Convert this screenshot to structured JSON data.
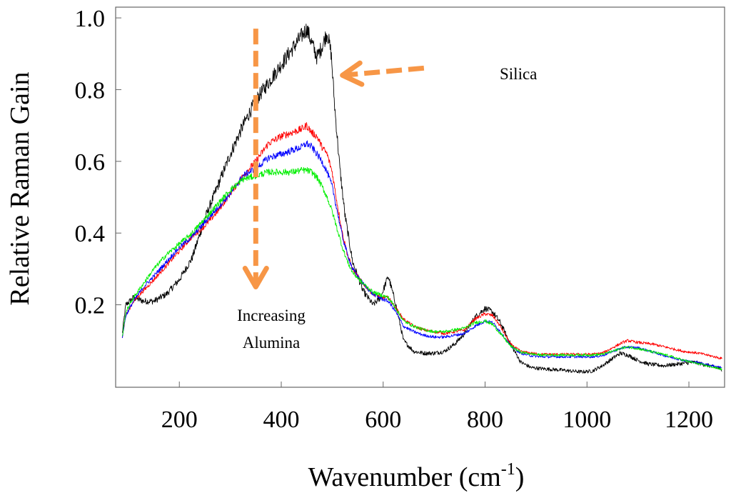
{
  "chart_data": {
    "type": "line",
    "xlabel": "Wavenumber (cm",
    "xlabel_sup": "-1",
    "xlabel_end": ")",
    "ylabel": "Relative Raman Gain",
    "xlim": [
      75,
      1270
    ],
    "ylim": [
      -0.03,
      1.03
    ],
    "xticks": [
      200,
      400,
      600,
      800,
      1000,
      1200
    ],
    "yticks": [
      0.2,
      0.4,
      0.6,
      0.8,
      1.0
    ],
    "ytick_labels": [
      "0.2",
      "0.4",
      "0.6",
      "0.8",
      "1.0"
    ],
    "grid": false,
    "annotations": [
      {
        "text": "Silica",
        "x": 690,
        "y": 0.83
      },
      {
        "text": "Increasing",
        "x": 385,
        "y": 0.17
      },
      {
        "text": "Alumina",
        "x": 385,
        "y": 0.1
      }
    ],
    "arrows": [
      {
        "label": "Increasing Alumina",
        "from": [
          350,
          0.97
        ],
        "to": [
          350,
          0.25
        ],
        "color": "#f79646"
      },
      {
        "label": "Silica",
        "from": [
          680,
          0.86
        ],
        "to": [
          520,
          0.84
        ],
        "color": "#f79646"
      }
    ],
    "series": [
      {
        "name": "Silica",
        "color": "#000000",
        "noise": 0.012,
        "x": [
          88,
          95,
          110,
          130,
          150,
          175,
          200,
          225,
          250,
          275,
          300,
          325,
          350,
          375,
          400,
          420,
          440,
          450,
          460,
          470,
          480,
          490,
          498,
          505,
          515,
          525,
          540,
          560,
          580,
          595,
          610,
          625,
          640,
          660,
          680,
          700,
          720,
          740,
          760,
          780,
          800,
          815,
          830,
          850,
          870,
          890,
          910,
          930,
          950,
          970,
          990,
          1010,
          1030,
          1050,
          1065,
          1080,
          1100,
          1120,
          1150,
          1180,
          1210,
          1240,
          1265
        ],
        "y": [
          0.12,
          0.2,
          0.22,
          0.21,
          0.21,
          0.23,
          0.27,
          0.33,
          0.44,
          0.53,
          0.62,
          0.7,
          0.77,
          0.82,
          0.87,
          0.91,
          0.95,
          0.97,
          0.93,
          0.89,
          0.92,
          0.96,
          0.9,
          0.75,
          0.58,
          0.45,
          0.32,
          0.24,
          0.2,
          0.22,
          0.28,
          0.2,
          0.1,
          0.07,
          0.065,
          0.065,
          0.07,
          0.09,
          0.12,
          0.165,
          0.19,
          0.18,
          0.15,
          0.09,
          0.04,
          0.025,
          0.022,
          0.02,
          0.018,
          0.015,
          0.013,
          0.015,
          0.03,
          0.05,
          0.065,
          0.06,
          0.045,
          0.035,
          0.03,
          0.035,
          0.04,
          0.03,
          0.02
        ]
      },
      {
        "name": "Red",
        "color": "#ff0000",
        "noise": 0.007,
        "x": [
          88,
          95,
          110,
          130,
          150,
          175,
          200,
          225,
          250,
          275,
          300,
          325,
          350,
          375,
          400,
          420,
          440,
          450,
          460,
          470,
          480,
          490,
          500,
          510,
          520,
          530,
          540,
          560,
          580,
          600,
          610,
          625,
          640,
          660,
          680,
          700,
          720,
          740,
          760,
          780,
          800,
          815,
          830,
          850,
          870,
          890,
          910,
          930,
          950,
          980,
          1010,
          1030,
          1050,
          1070,
          1080,
          1100,
          1130,
          1160,
          1190,
          1220,
          1265
        ],
        "y": [
          0.11,
          0.17,
          0.21,
          0.24,
          0.27,
          0.31,
          0.35,
          0.39,
          0.42,
          0.46,
          0.51,
          0.56,
          0.6,
          0.65,
          0.67,
          0.68,
          0.69,
          0.7,
          0.68,
          0.67,
          0.64,
          0.62,
          0.57,
          0.48,
          0.4,
          0.34,
          0.3,
          0.26,
          0.23,
          0.22,
          0.22,
          0.19,
          0.16,
          0.14,
          0.13,
          0.125,
          0.12,
          0.125,
          0.13,
          0.16,
          0.175,
          0.17,
          0.14,
          0.09,
          0.07,
          0.065,
          0.062,
          0.062,
          0.062,
          0.062,
          0.062,
          0.065,
          0.08,
          0.095,
          0.1,
          0.095,
          0.09,
          0.08,
          0.07,
          0.065,
          0.05
        ]
      },
      {
        "name": "Blue",
        "color": "#0000ff",
        "noise": 0.007,
        "x": [
          88,
          95,
          110,
          130,
          150,
          175,
          200,
          225,
          250,
          275,
          300,
          325,
          350,
          375,
          400,
          420,
          440,
          450,
          460,
          470,
          480,
          490,
          500,
          510,
          520,
          530,
          540,
          560,
          580,
          600,
          610,
          625,
          640,
          660,
          680,
          700,
          720,
          740,
          760,
          780,
          800,
          815,
          830,
          850,
          870,
          890,
          910,
          930,
          950,
          980,
          1010,
          1030,
          1050,
          1070,
          1080,
          1100,
          1130,
          1160,
          1190,
          1220,
          1265
        ],
        "y": [
          0.11,
          0.17,
          0.21,
          0.25,
          0.28,
          0.32,
          0.36,
          0.39,
          0.43,
          0.47,
          0.51,
          0.56,
          0.58,
          0.61,
          0.62,
          0.63,
          0.64,
          0.65,
          0.64,
          0.62,
          0.6,
          0.57,
          0.53,
          0.46,
          0.39,
          0.34,
          0.3,
          0.26,
          0.23,
          0.215,
          0.21,
          0.18,
          0.14,
          0.125,
          0.115,
          0.11,
          0.11,
          0.115,
          0.12,
          0.14,
          0.155,
          0.15,
          0.125,
          0.085,
          0.065,
          0.058,
          0.055,
          0.055,
          0.055,
          0.055,
          0.055,
          0.058,
          0.07,
          0.08,
          0.082,
          0.08,
          0.068,
          0.055,
          0.045,
          0.038,
          0.025
        ]
      },
      {
        "name": "Green",
        "color": "#00ee00",
        "noise": 0.007,
        "x": [
          88,
          95,
          110,
          130,
          150,
          175,
          200,
          225,
          250,
          275,
          300,
          325,
          350,
          375,
          400,
          420,
          440,
          450,
          460,
          470,
          480,
          490,
          500,
          510,
          520,
          530,
          540,
          560,
          580,
          600,
          610,
          625,
          640,
          660,
          680,
          700,
          720,
          740,
          760,
          780,
          800,
          815,
          830,
          850,
          870,
          890,
          910,
          930,
          950,
          980,
          1010,
          1030,
          1050,
          1070,
          1080,
          1100,
          1130,
          1160,
          1190,
          1220,
          1265
        ],
        "y": [
          0.11,
          0.18,
          0.22,
          0.26,
          0.3,
          0.34,
          0.37,
          0.4,
          0.44,
          0.48,
          0.52,
          0.55,
          0.56,
          0.57,
          0.57,
          0.57,
          0.575,
          0.575,
          0.57,
          0.555,
          0.53,
          0.5,
          0.46,
          0.41,
          0.36,
          0.32,
          0.29,
          0.26,
          0.235,
          0.225,
          0.22,
          0.19,
          0.155,
          0.14,
          0.13,
          0.125,
          0.125,
          0.13,
          0.135,
          0.15,
          0.155,
          0.145,
          0.12,
          0.085,
          0.068,
          0.063,
          0.06,
          0.06,
          0.06,
          0.06,
          0.06,
          0.062,
          0.07,
          0.08,
          0.082,
          0.078,
          0.068,
          0.058,
          0.045,
          0.035,
          0.02
        ]
      }
    ]
  }
}
